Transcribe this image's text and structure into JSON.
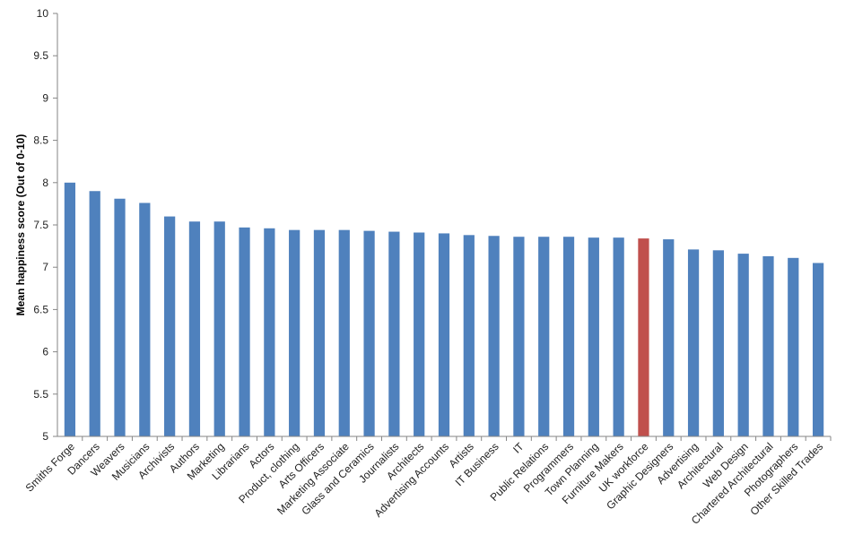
{
  "chart_data": {
    "type": "bar",
    "title": "",
    "xlabel": "",
    "ylabel": "Mean happiness score  (Out of  0-10)",
    "ylim": [
      5,
      10
    ],
    "ytick_step": 0.5,
    "ytick_labels": [
      "5",
      "5.5",
      "6",
      "6.5",
      "7",
      "7.5",
      "8",
      "8.5",
      "9",
      "9.5",
      "10"
    ],
    "grid": false,
    "legend": "none",
    "colors": {
      "default": "#4F81BD",
      "highlight": "#C0504D"
    },
    "highlight_category": "UK workforce",
    "categories": [
      "Smiths Forge",
      "Dancers",
      "Weavers",
      "Musicians",
      "Archivists",
      "Authors",
      "Marketing",
      "Librarians",
      "Actors",
      "Product, clothing",
      "Arts Officers",
      "Marketing Associate",
      "Glass and Ceramics",
      "Journalists",
      "Architects",
      "Advertising Accounts",
      "Artists",
      "IT Business",
      "IT",
      "Public Relations",
      "Programmers",
      "Town Planning",
      "Furniture Makers",
      "UK workforce",
      "Graphic Designers",
      "Advertising",
      "Architectural",
      "Web Design",
      "Chartered Architectural",
      "Photographers",
      "Other Skilled Trades"
    ],
    "values": [
      8.0,
      7.9,
      7.81,
      7.76,
      7.6,
      7.54,
      7.54,
      7.47,
      7.46,
      7.44,
      7.44,
      7.44,
      7.43,
      7.42,
      7.41,
      7.4,
      7.38,
      7.37,
      7.36,
      7.36,
      7.36,
      7.35,
      7.35,
      7.34,
      7.33,
      7.21,
      7.2,
      7.16,
      7.13,
      7.11,
      7.05
    ]
  }
}
